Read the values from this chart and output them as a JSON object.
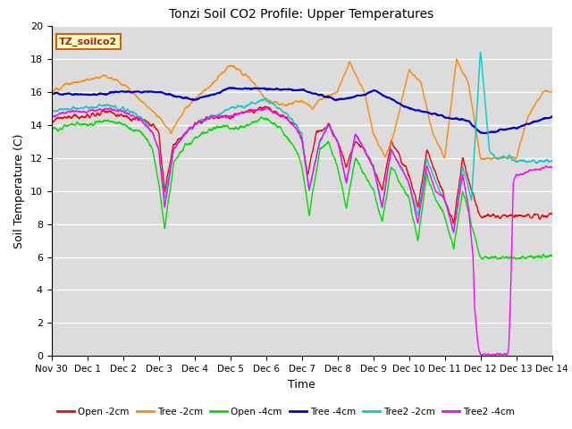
{
  "title": "Tonzi Soil CO2 Profile: Upper Temperatures",
  "xlabel": "Time",
  "ylabel": "Soil Temperature (C)",
  "ylim": [
    0,
    20
  ],
  "xlim": [
    0,
    336
  ],
  "background_color": "#dcdcdc",
  "annotation_text": "TZ_soilco2",
  "annotation_bg": "#ffffcc",
  "annotation_border": "#cc6600",
  "xtick_labels": [
    "Nov 30",
    "Dec 1",
    "Dec 2",
    "Dec 3",
    "Dec 4",
    "Dec 5",
    "Dec 6",
    "Dec 7",
    "Dec 8",
    "Dec 9",
    "Dec 10",
    "Dec 11",
    "Dec 12",
    "Dec 13",
    "Dec 14"
  ],
  "xtick_positions": [
    0,
    24,
    48,
    72,
    96,
    120,
    144,
    168,
    192,
    216,
    240,
    264,
    288,
    312,
    336
  ],
  "series": {
    "Open_2cm": {
      "color": "#ff0000",
      "label": "Open -2cm",
      "lw": 1.0
    },
    "Tree_2cm": {
      "color": "#ff8800",
      "label": "Tree -2cm",
      "lw": 1.0
    },
    "Open_4cm": {
      "color": "#00dd00",
      "label": "Open -4cm",
      "lw": 1.0
    },
    "Tree_4cm": {
      "color": "#0000cc",
      "label": "Tree -4cm",
      "lw": 1.5
    },
    "Tree2_2cm": {
      "color": "#00cccc",
      "label": "Tree2 -2cm",
      "lw": 1.0
    },
    "Tree2_4cm": {
      "color": "#ff00ff",
      "label": "Tree2 -4cm",
      "lw": 1.0
    }
  }
}
